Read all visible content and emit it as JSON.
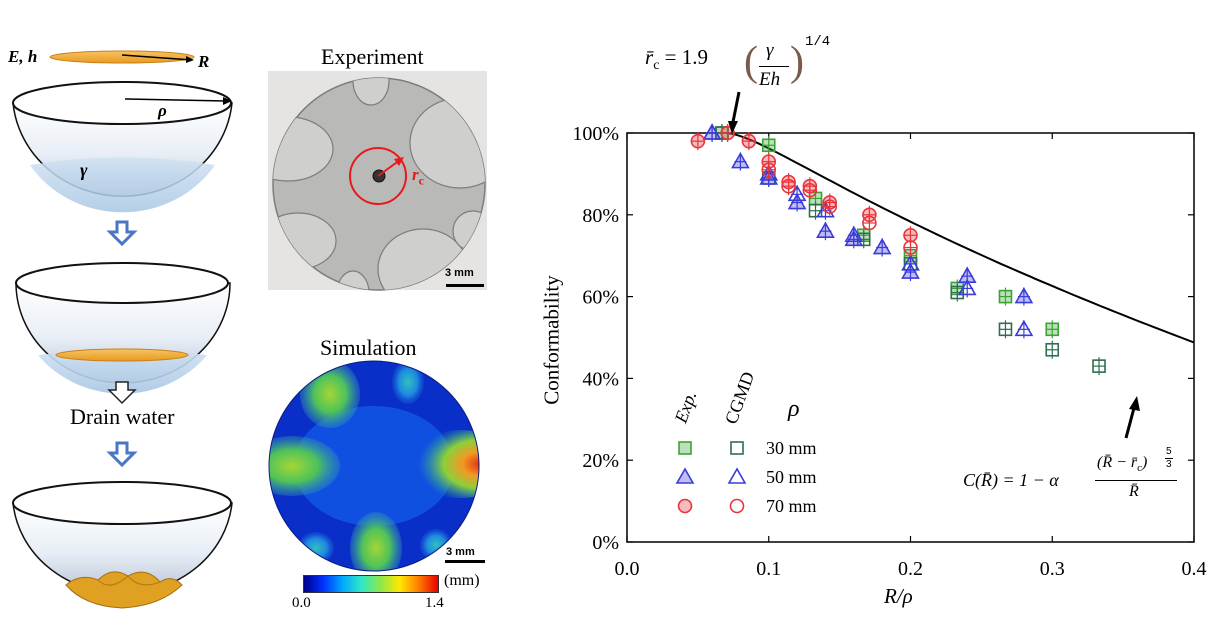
{
  "schematic": {
    "film_label": "E, h",
    "film_radius_label": "R",
    "bowl_radius_label": "ρ",
    "surface_tension_label": "γ",
    "drain_label": "Drain water"
  },
  "experiment": {
    "title": "Experiment",
    "rc_label": "r",
    "rc_sub": "c",
    "scale_label": "3 mm"
  },
  "simulation": {
    "title": "Simulation",
    "scale_label": "3 mm",
    "colorbar_min": "0.0",
    "colorbar_max": "1.4",
    "colorbar_unit": "(mm)"
  },
  "formula_rc": {
    "lhs": "r̄",
    "lhs_sub": "c",
    "coef": " = 1.9",
    "num": "γ",
    "den": "Eh",
    "exp": "1/4"
  },
  "formula_C": {
    "lhs": "C(R̄) = 1 − α",
    "num": "(R̄ − r̄",
    "num_sub": "c",
    "num_close": ")",
    "num_exp_top": "5",
    "num_exp_bot": "3",
    "den": "R̄"
  },
  "legend": {
    "col_exp": "Exp.",
    "col_cgmd": "CGMD",
    "header": "ρ",
    "rows": [
      {
        "label": "30 mm",
        "marker": "square",
        "color": "#3aa335"
      },
      {
        "label": "50 mm",
        "marker": "triangle",
        "color": "#3b3bdb"
      },
      {
        "label": "70 mm",
        "marker": "circle",
        "color": "#e8343a"
      }
    ]
  },
  "colors": {
    "green": "#3aa335",
    "green_dark": "#2f6e4f",
    "blue": "#3b3bdb",
    "red": "#e8343a",
    "film": "#f5ae33"
  },
  "chart_data": {
    "type": "scatter",
    "xlabel": "R/ρ",
    "ylabel": "Conformability",
    "xlim": [
      0,
      0.4
    ],
    "ylim": [
      0,
      100
    ],
    "xticks": [
      "0.0",
      "0.1",
      "0.2",
      "0.3",
      "0.4"
    ],
    "yticks": [
      "0%",
      "20%",
      "40%",
      "60%",
      "80%",
      "100%"
    ],
    "series": [
      {
        "name": "Exp. 30 mm",
        "marker": "square",
        "filled": true,
        "color": "#3aa335",
        "points": [
          [
            0.067,
            100
          ],
          [
            0.1,
            97
          ],
          [
            0.133,
            84
          ],
          [
            0.167,
            75
          ],
          [
            0.2,
            70
          ],
          [
            0.233,
            62
          ],
          [
            0.267,
            60
          ],
          [
            0.3,
            52
          ]
        ]
      },
      {
        "name": "CGMD 30 mm",
        "marker": "square",
        "filled": false,
        "color": "#2f6e4f",
        "points": [
          [
            0.067,
            100
          ],
          [
            0.1,
            89
          ],
          [
            0.133,
            81
          ],
          [
            0.167,
            74
          ],
          [
            0.2,
            68
          ],
          [
            0.233,
            61
          ],
          [
            0.267,
            52
          ],
          [
            0.3,
            47
          ],
          [
            0.333,
            43
          ]
        ]
      },
      {
        "name": "Exp. 50 mm",
        "marker": "triangle",
        "filled": true,
        "color": "#3b3bdb",
        "points": [
          [
            0.06,
            100
          ],
          [
            0.08,
            93
          ],
          [
            0.1,
            89
          ],
          [
            0.12,
            83
          ],
          [
            0.14,
            76
          ],
          [
            0.16,
            74
          ],
          [
            0.18,
            72
          ],
          [
            0.2,
            66
          ],
          [
            0.24,
            65
          ],
          [
            0.28,
            60
          ]
        ]
      },
      {
        "name": "CGMD 50 mm",
        "marker": "triangle",
        "filled": false,
        "color": "#3b3bdb",
        "points": [
          [
            0.06,
            100
          ],
          [
            0.1,
            90
          ],
          [
            0.12,
            85
          ],
          [
            0.14,
            81
          ],
          [
            0.16,
            75
          ],
          [
            0.2,
            68
          ],
          [
            0.24,
            62
          ],
          [
            0.28,
            52
          ]
        ]
      },
      {
        "name": "Exp. 70 mm",
        "marker": "circle",
        "filled": true,
        "color": "#e8343a",
        "points": [
          [
            0.05,
            98
          ],
          [
            0.071,
            100
          ],
          [
            0.086,
            98
          ],
          [
            0.1,
            93
          ],
          [
            0.114,
            88
          ],
          [
            0.129,
            87
          ],
          [
            0.143,
            83
          ],
          [
            0.171,
            80
          ],
          [
            0.2,
            75
          ]
        ]
      },
      {
        "name": "CGMD 70 mm",
        "marker": "circle",
        "filled": false,
        "color": "#e8343a",
        "points": [
          [
            0.1,
            91
          ],
          [
            0.114,
            87
          ],
          [
            0.129,
            86
          ],
          [
            0.143,
            82
          ],
          [
            0.171,
            78
          ],
          [
            0.2,
            72
          ]
        ]
      }
    ],
    "model_curve": {
      "rc": 0.07,
      "alpha": 1.3,
      "x_end": 0.4
    }
  }
}
